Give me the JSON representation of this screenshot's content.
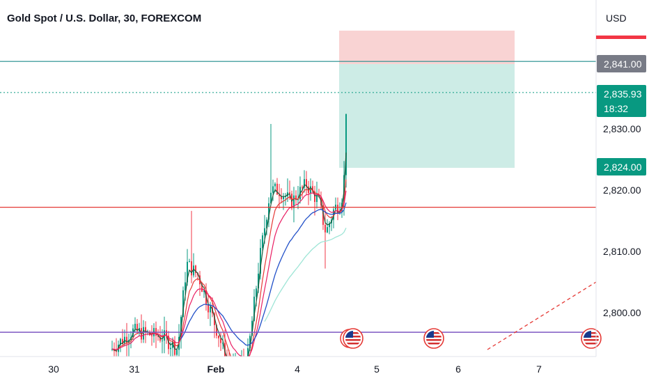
{
  "header": {
    "title": "Gold Spot / U.S. Dollar, 30, FOREXCOM",
    "currency": "USD"
  },
  "colors": {
    "up": "#089981",
    "down": "#f23645",
    "ema_fast": "#1e5b3c",
    "ema_red": "#e53935",
    "ema_pink": "#e91e63",
    "ema_blue": "#2150c8",
    "ema_cyan": "#9ee5d6",
    "stop_zone": "#f9d3d3",
    "target_zone": "#cdece6",
    "resistance": "#1f8c8c",
    "support": "#e53935",
    "baseline": "#7e57c2",
    "price_badge": "#089981",
    "level_badge": "#787b86"
  },
  "icons": {
    "event_marker": "us-flag-icon"
  },
  "chart_data": {
    "type": "candlestick",
    "title": "Gold Spot / U.S. Dollar, 30, FOREXCOM",
    "y_axis": {
      "range": [
        2794,
        2851
      ],
      "ticks": [
        {
          "value": 2800,
          "label": "2,800.00"
        },
        {
          "value": 2810,
          "label": "2,810.00"
        },
        {
          "value": 2820,
          "label": "2,820.00"
        },
        {
          "value": 2830,
          "label": "2,830.00"
        }
      ]
    },
    "x_axis": {
      "ticks": [
        {
          "label": "30",
          "bold": false
        },
        {
          "label": "31",
          "bold": false
        },
        {
          "label": "Feb",
          "bold": true
        },
        {
          "label": "4",
          "bold": false
        },
        {
          "label": "5",
          "bold": false
        },
        {
          "label": "6",
          "bold": false
        },
        {
          "label": "7",
          "bold": false
        }
      ]
    },
    "levels": {
      "resistance": 2841.0,
      "support": 2817.2,
      "baseline": 2796.8
    },
    "position": {
      "type": "long",
      "entry": 2824.0,
      "target": 2841.0,
      "stop": 2844.3
    },
    "price_badges": [
      {
        "value": 2841.0,
        "label": "2,841.00"
      },
      {
        "value": 2835.93,
        "label": "2,835.93",
        "countdown": "18:32"
      },
      {
        "value": 2824.0,
        "label": "2,824.00"
      }
    ],
    "current_price": 2835.93,
    "events": [
      {
        "label": "us-event-1"
      },
      {
        "label": "us-event-2"
      },
      {
        "label": "us-event-3"
      }
    ]
  }
}
